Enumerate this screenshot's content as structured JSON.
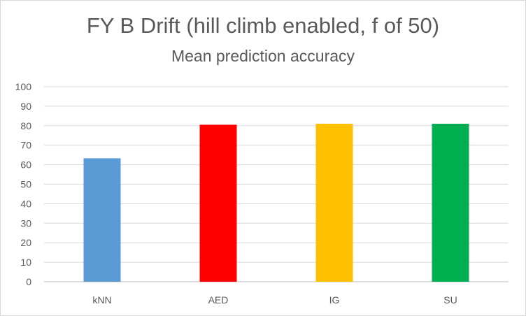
{
  "chart_data": {
    "type": "bar",
    "title": "FY B Drift (hill climb enabled, f of 50)",
    "subtitle": "Mean prediction accuracy",
    "categories": [
      "kNN",
      "AED",
      "IG",
      "SU"
    ],
    "values": [
      63.3,
      80.5,
      81,
      81
    ],
    "colors": [
      "#5b9bd5",
      "#ff0000",
      "#ffc000",
      "#00b050"
    ],
    "ylim": [
      0,
      100
    ],
    "yticks": [
      0,
      10,
      20,
      30,
      40,
      50,
      60,
      70,
      80,
      90,
      100
    ],
    "grid": true,
    "gridColor": "#d9d9d9",
    "axisColor": "#bfbfbf",
    "textColor": "#595959"
  }
}
